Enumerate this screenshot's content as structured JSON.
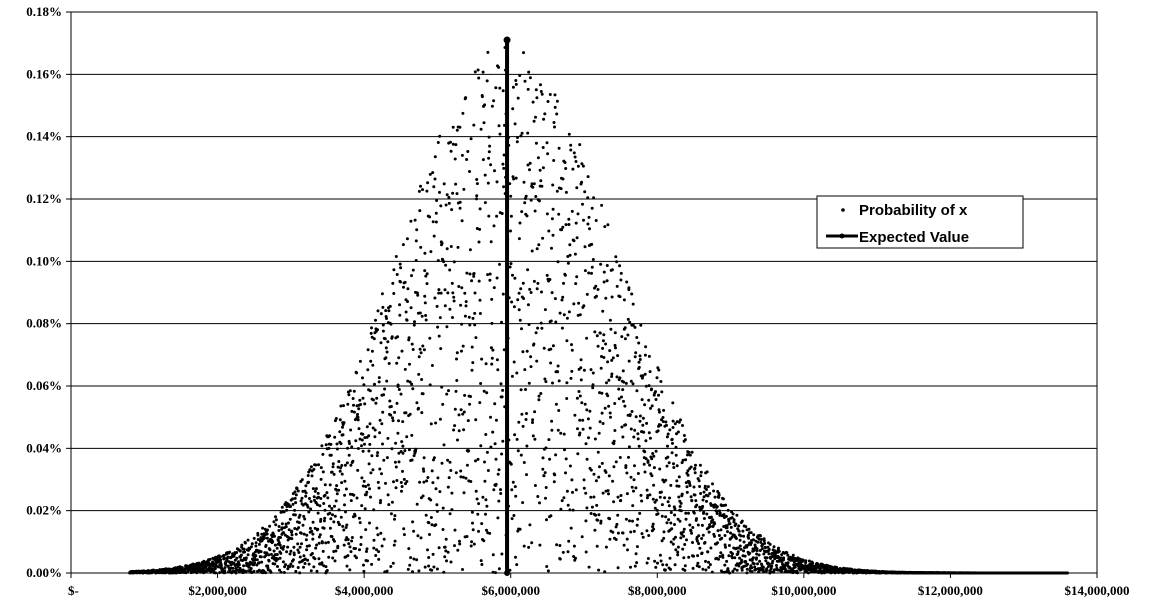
{
  "chart_data": {
    "type": "scatter",
    "title": "",
    "xlabel": "",
    "ylabel": "",
    "xlim": [
      0,
      14000000
    ],
    "ylim": [
      0,
      0.0018
    ],
    "grid": "horizontal",
    "legend_position": "right",
    "x_ticks": [
      0,
      2000000,
      4000000,
      6000000,
      8000000,
      10000000,
      12000000,
      14000000
    ],
    "x_tick_labels": [
      "$-",
      "$2,000,000",
      "$4,000,000",
      "$6,000,000",
      "$8,000,000",
      "$10,000,000",
      "$12,000,000",
      "$14,000,000"
    ],
    "y_ticks": [
      0,
      0.0002,
      0.0004,
      0.0006,
      0.0008,
      0.001,
      0.0012,
      0.0014,
      0.0016,
      0.0018
    ],
    "y_tick_labels": [
      "0.00%",
      "0.02%",
      "0.04%",
      "0.06%",
      "0.08%",
      "0.10%",
      "0.12%",
      "0.14%",
      "0.16%",
      "0.18%"
    ],
    "legend": [
      "Probability of x",
      "Expected Value"
    ],
    "series": [
      {
        "name": "Probability of x",
        "kind": "scatter",
        "distribution": {
          "shape": "normal",
          "mean": 5950000,
          "sd": 1500000,
          "peak": 0.00171,
          "x_min": 800000,
          "x_max": 13600000,
          "count": 4200
        }
      },
      {
        "name": "Expected Value",
        "kind": "vertical-line",
        "x": 5950000,
        "y": [
          0,
          0.00171
        ]
      }
    ]
  }
}
